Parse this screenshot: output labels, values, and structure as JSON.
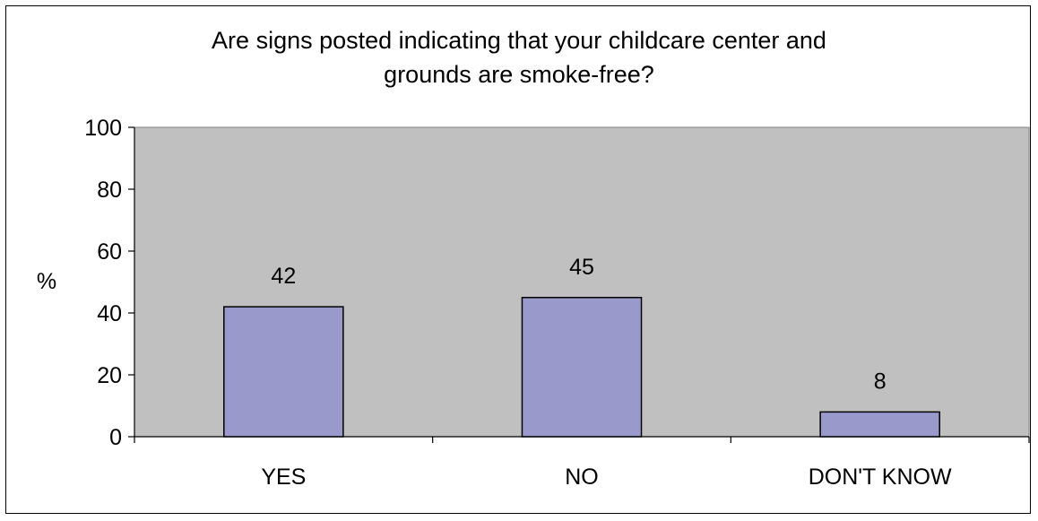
{
  "chart_data": {
    "type": "bar",
    "title_lines": [
      "Are signs posted indicating that your childcare center and",
      "grounds are smoke-free?"
    ],
    "xlabel": "",
    "ylabel": "%",
    "categories": [
      "YES",
      "NO",
      "DON'T KNOW"
    ],
    "values": [
      42,
      45,
      8
    ],
    "data_labels": [
      "42",
      "45",
      "8"
    ],
    "ylim": [
      0,
      100
    ],
    "yticks": [
      0,
      20,
      40,
      60,
      80,
      100
    ],
    "grid": false,
    "legend": "none",
    "colors": {
      "plot_background": "#c0c0c0",
      "bar_fill": "#9999cc",
      "bar_stroke": "#000000",
      "axis": "#000000"
    }
  }
}
